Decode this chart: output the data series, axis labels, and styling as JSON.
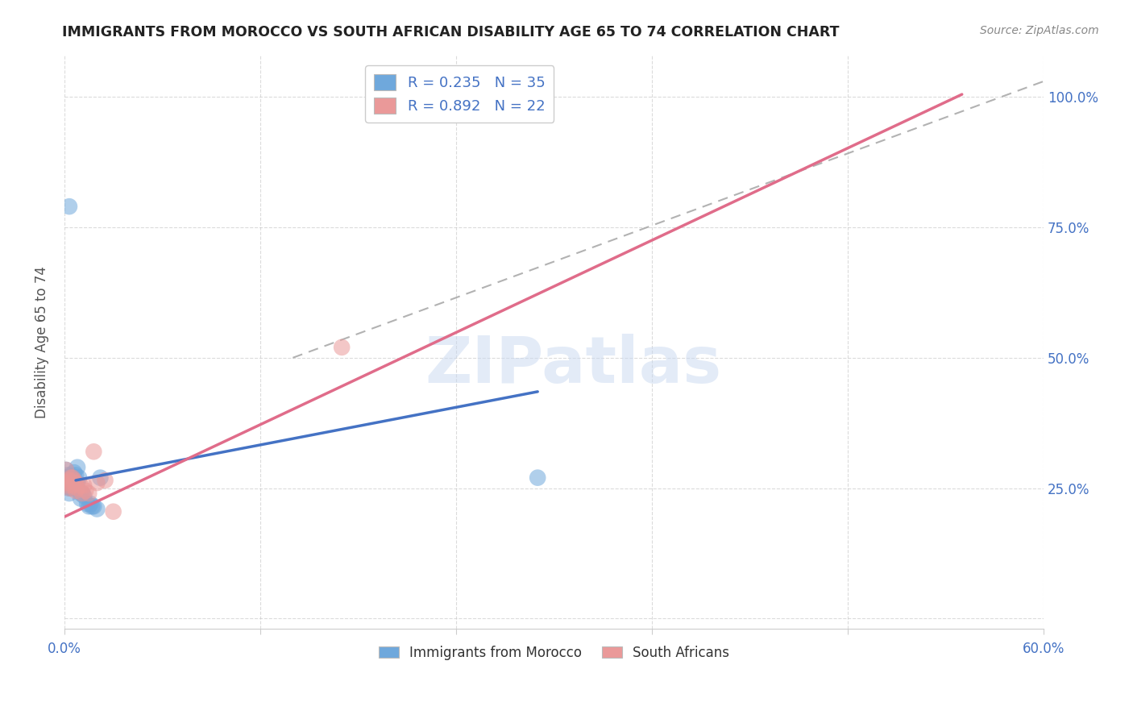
{
  "title": "IMMIGRANTS FROM MOROCCO VS SOUTH AFRICAN DISABILITY AGE 65 TO 74 CORRELATION CHART",
  "source": "Source: ZipAtlas.com",
  "ylabel": "Disability Age 65 to 74",
  "xlim": [
    0.0,
    0.6
  ],
  "ylim": [
    -0.02,
    1.08
  ],
  "xtick_positions": [
    0.0,
    0.12,
    0.24,
    0.36,
    0.48,
    0.6
  ],
  "xtick_labels": [
    "0.0%",
    "",
    "",
    "",
    "",
    "60.0%"
  ],
  "ytick_positions": [
    0.0,
    0.25,
    0.5,
    0.75,
    1.0
  ],
  "ytick_labels_right": [
    "",
    "25.0%",
    "50.0%",
    "75.0%",
    "100.0%"
  ],
  "morocco_color": "#6fa8dc",
  "sa_color": "#ea9999",
  "morocco_line_color": "#4472c4",
  "sa_line_color": "#e06c8a",
  "grid_color": "#cccccc",
  "legend_label1": "R = 0.235   N = 35",
  "legend_label2": "R = 0.892   N = 22",
  "legend_label3": "Immigrants from Morocco",
  "legend_label4": "South Africans",
  "watermark_text": "ZIPatlas",
  "morocco_x": [
    0.001,
    0.001,
    0.002,
    0.002,
    0.002,
    0.003,
    0.003,
    0.003,
    0.003,
    0.004,
    0.004,
    0.004,
    0.005,
    0.005,
    0.005,
    0.006,
    0.006,
    0.007,
    0.007,
    0.008,
    0.008,
    0.009,
    0.01,
    0.01,
    0.011,
    0.012,
    0.014,
    0.015,
    0.016,
    0.017,
    0.018,
    0.02,
    0.022,
    0.29,
    0.003
  ],
  "morocco_y": [
    0.285,
    0.27,
    0.275,
    0.265,
    0.255,
    0.27,
    0.26,
    0.25,
    0.24,
    0.275,
    0.265,
    0.25,
    0.27,
    0.265,
    0.25,
    0.28,
    0.26,
    0.275,
    0.26,
    0.29,
    0.26,
    0.27,
    0.24,
    0.23,
    0.24,
    0.235,
    0.22,
    0.215,
    0.22,
    0.215,
    0.215,
    0.21,
    0.27,
    0.27,
    0.79
  ],
  "sa_x": [
    0.001,
    0.001,
    0.002,
    0.003,
    0.003,
    0.004,
    0.005,
    0.005,
    0.006,
    0.007,
    0.007,
    0.008,
    0.01,
    0.011,
    0.012,
    0.013,
    0.015,
    0.018,
    0.02,
    0.025,
    0.03,
    0.17
  ],
  "sa_y": [
    0.285,
    0.26,
    0.255,
    0.265,
    0.25,
    0.27,
    0.27,
    0.255,
    0.265,
    0.26,
    0.245,
    0.25,
    0.255,
    0.24,
    0.255,
    0.245,
    0.24,
    0.32,
    0.26,
    0.265,
    0.205,
    0.52
  ],
  "morocco_line_x": [
    0.007,
    0.29
  ],
  "morocco_line_y": [
    0.265,
    0.435
  ],
  "sa_line_x": [
    0.0,
    0.55
  ],
  "sa_line_y": [
    0.195,
    1.005
  ],
  "ref_line_x": [
    0.14,
    0.6
  ],
  "ref_line_y": [
    0.5,
    1.03
  ]
}
